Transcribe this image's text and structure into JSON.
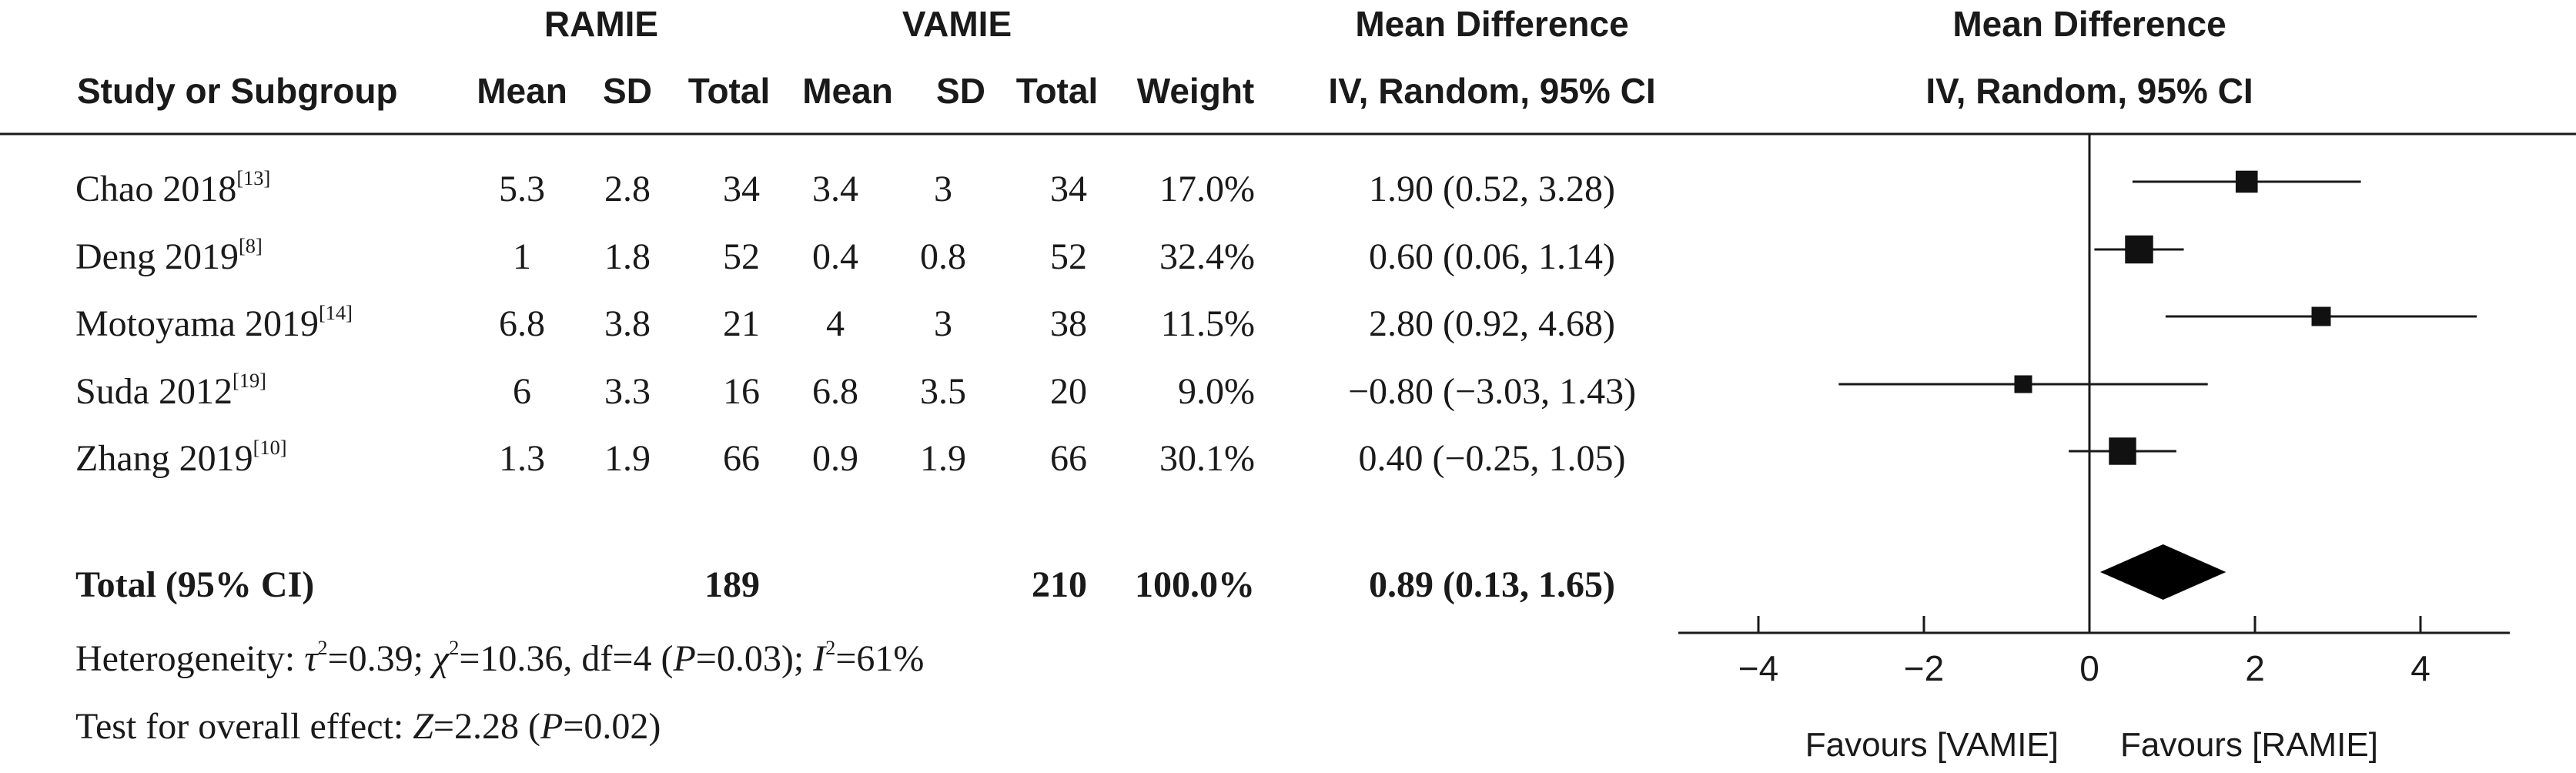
{
  "header": {
    "group1": "RAMIE",
    "group2": "VAMIE",
    "md_title_table": "Mean Difference",
    "md_sub_table": "IV, Random, 95% CI",
    "md_title_plot": "Mean Difference",
    "md_sub_plot": "IV, Random, 95% CI",
    "study_col": "Study or Subgroup",
    "mean1": "Mean",
    "sd1": "SD",
    "total1": "Total",
    "mean2": "Mean",
    "sd2": "SD",
    "total2": "Total",
    "weight": "Weight"
  },
  "studies": [
    {
      "name": "Chao 2018",
      "ref": "[13]",
      "mean1": "5.3",
      "sd1": "2.8",
      "total1": "34",
      "mean2": "3.4",
      "sd2": "3",
      "total2": "34",
      "weight": "17.0%",
      "ci_text": "1.90 (0.52, 3.28)"
    },
    {
      "name": "Deng 2019",
      "ref": "[8]",
      "mean1": "1",
      "sd1": "1.8",
      "total1": "52",
      "mean2": "0.4",
      "sd2": "0.8",
      "total2": "52",
      "weight": "32.4%",
      "ci_text": "0.60 (0.06, 1.14)"
    },
    {
      "name": "Motoyama 2019",
      "ref": "[14]",
      "mean1": "6.8",
      "sd1": "3.8",
      "total1": "21",
      "mean2": "4",
      "sd2": "3",
      "total2": "38",
      "weight": "11.5%",
      "ci_text": "2.80 (0.92, 4.68)"
    },
    {
      "name": "Suda 2012",
      "ref": "[19]",
      "mean1": "6",
      "sd1": "3.3",
      "total1": "16",
      "mean2": "6.8",
      "sd2": "3.5",
      "total2": "20",
      "weight": "9.0%",
      "ci_text": "−0.80 (−3.03, 1.43)"
    },
    {
      "name": "Zhang 2019",
      "ref": "[10]",
      "mean1": "1.3",
      "sd1": "1.9",
      "total1": "66",
      "mean2": "0.9",
      "sd2": "1.9",
      "total2": "66",
      "weight": "30.1%",
      "ci_text": "0.40 (−0.25, 1.05)"
    }
  ],
  "total_row": {
    "label": "Total (95% CI)",
    "total1": "189",
    "total2": "210",
    "weight": "100.0%",
    "ci_text": "0.89 (0.13, 1.65)"
  },
  "footer": {
    "heterogeneity": {
      "prefix": "Heterogeneity: ",
      "tau": "τ",
      "tau_sup": "2",
      "tau_val": "=0.39; ",
      "chi": "χ",
      "chi_sup": "2",
      "chi_val": "=10.36, df=4 (",
      "p": "P",
      "p_val": "=0.03); ",
      "i": "I",
      "i_sup": "2",
      "i_val": "=61%"
    },
    "overall": {
      "prefix": "Test for overall effect: ",
      "z": "Z",
      "z_val": "=2.28 (",
      "p": "P",
      "p_val": "=0.02)"
    }
  },
  "chart_data": {
    "type": "forest",
    "xlim": [
      -5,
      5
    ],
    "ticks": [
      -4,
      -2,
      0,
      2,
      4
    ],
    "tick_labels": [
      "−4",
      "−2",
      "0",
      "2",
      "4"
    ],
    "favours_left": "Favours [VAMIE]",
    "favours_right": "Favours [RAMIE]",
    "studies": [
      {
        "md": 1.9,
        "lo": 0.52,
        "hi": 3.28,
        "weight": 17.0
      },
      {
        "md": 0.6,
        "lo": 0.06,
        "hi": 1.14,
        "weight": 32.4
      },
      {
        "md": 2.8,
        "lo": 0.92,
        "hi": 4.68,
        "weight": 11.5
      },
      {
        "md": -0.8,
        "lo": -3.03,
        "hi": 1.43,
        "weight": 9.0
      },
      {
        "md": 0.4,
        "lo": -0.25,
        "hi": 1.05,
        "weight": 30.1
      }
    ],
    "overall": {
      "md": 0.89,
      "lo": 0.13,
      "hi": 1.65
    }
  }
}
